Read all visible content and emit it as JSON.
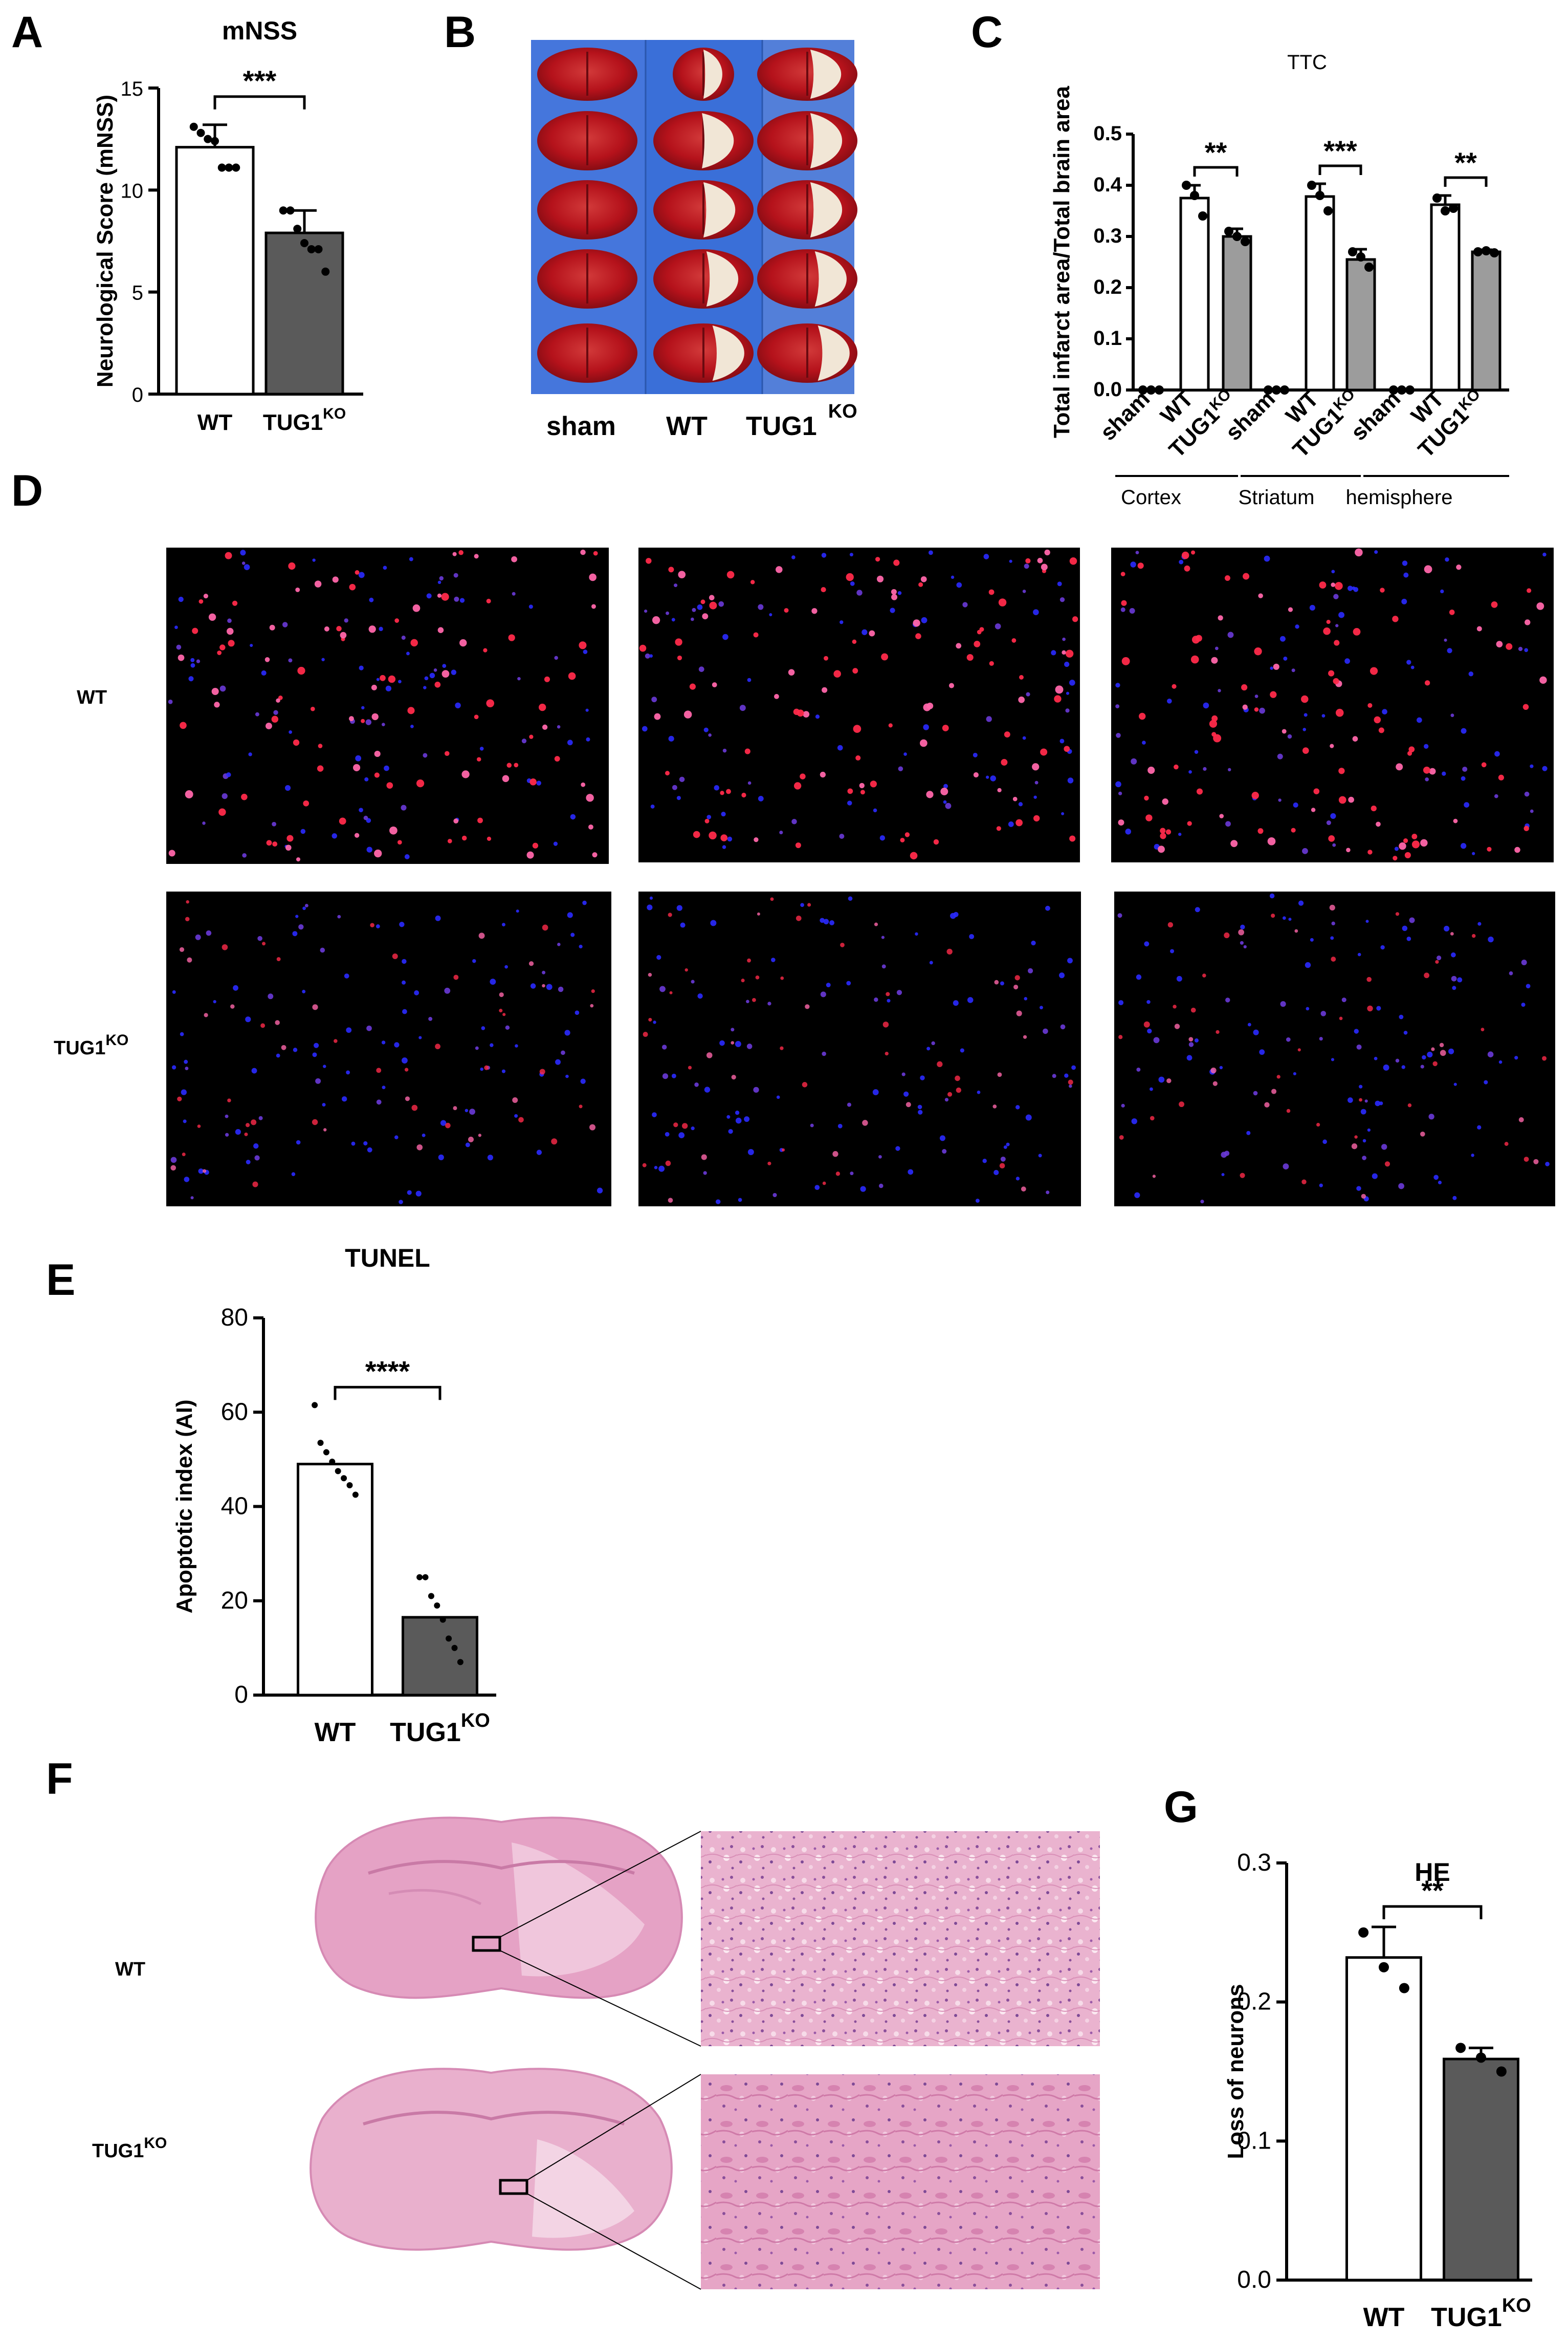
{
  "panels": {
    "A": "A",
    "B": "B",
    "C": "C",
    "D": "D",
    "E": "E",
    "F": "F",
    "G": "G"
  },
  "panel_b": {
    "labels": [
      "sham",
      "WT",
      "TUG1"
    ],
    "tug1_sup": "KO"
  },
  "panel_d": {
    "row_labels": [
      "WT",
      "TUG1"
    ],
    "tug1_sup": "KO"
  },
  "panel_f": {
    "row_labels": [
      "WT",
      "TUG1"
    ],
    "tug1_sup": "KO"
  },
  "colors": {
    "tissue_red": "#b5121b",
    "infarct_white": "#f1e6d6",
    "ttc_background": "#3a6fd8",
    "fluor_red": "#ff2a4a",
    "fluor_blue": "#2a2aff",
    "he_pink": "#e8a9c8",
    "bar_dark": "#5a5a5a",
    "bar_gray": "#9c9c9c"
  },
  "chart_data": [
    {
      "id": "A",
      "type": "bar",
      "title": "mNSS",
      "ylabel": "Neurological Score (mNSS)",
      "categories": [
        "WT",
        "TUG1"
      ],
      "category_sup": [
        "",
        "KO"
      ],
      "values": [
        12.1,
        7.9
      ],
      "errors": [
        1.1,
        1.1
      ],
      "points": [
        [
          13.1,
          12.8,
          12.5,
          12.4,
          11.1,
          11.1,
          11.1
        ],
        [
          9.0,
          9.0,
          8.1,
          7.4,
          7.1,
          7.1,
          6.0
        ]
      ],
      "ylim": [
        0,
        15
      ],
      "yticks": [
        0,
        5,
        10,
        15
      ],
      "significance": "***"
    },
    {
      "id": "C",
      "type": "bar",
      "title": "TTC",
      "ylabel": "Total infarct area/Total brain area",
      "categories": [
        "sham",
        "WT",
        "TUG1",
        "sham",
        "WT",
        "TUG1",
        "sham",
        "WT",
        "TUG1"
      ],
      "category_sup": [
        "",
        "",
        "KO",
        "",
        "",
        "KO",
        "",
        "",
        "KO"
      ],
      "groups": [
        "Cortex",
        "Striatum",
        "hemisphere"
      ],
      "values": [
        0.0,
        0.375,
        0.3,
        0.0,
        0.378,
        0.255,
        0.0,
        0.362,
        0.27
      ],
      "errors": [
        0,
        0.025,
        0.015,
        0,
        0.025,
        0.02,
        0,
        0.018,
        0.004
      ],
      "points": [
        [
          0,
          0,
          0
        ],
        [
          0.4,
          0.38,
          0.34
        ],
        [
          0.31,
          0.3,
          0.29
        ],
        [
          0,
          0,
          0
        ],
        [
          0.4,
          0.38,
          0.35
        ],
        [
          0.27,
          0.26,
          0.24
        ],
        [
          0,
          0,
          0
        ],
        [
          0.375,
          0.35,
          0.355
        ],
        [
          0.27,
          0.272,
          0.268
        ]
      ],
      "ylim": [
        0,
        0.5
      ],
      "yticks": [
        0.0,
        0.1,
        0.2,
        0.3,
        0.4,
        0.5
      ],
      "ytick_labels": [
        "0.0",
        "0.1",
        "0.2",
        "0.3",
        "0.4",
        "0.5"
      ],
      "significance": [
        "**",
        "***",
        "**"
      ]
    },
    {
      "id": "E",
      "type": "bar",
      "title": "TUNEL",
      "ylabel": "Apoptotic index (AI)",
      "categories": [
        "WT",
        "TUG1"
      ],
      "category_sup": [
        "",
        "KO"
      ],
      "values": [
        49,
        16.5
      ],
      "points": [
        [
          61.5,
          53.5,
          51.5,
          49.5,
          47.5,
          46,
          44.5,
          42.5
        ],
        [
          25,
          25,
          21,
          19,
          16,
          12,
          10,
          7
        ]
      ],
      "ylim": [
        0,
        80
      ],
      "yticks": [
        0,
        20,
        40,
        60,
        80
      ],
      "significance": "****"
    },
    {
      "id": "G",
      "type": "bar",
      "title": "HE",
      "ylabel": "Loss of  neurons",
      "categories": [
        "WT",
        "TUG1"
      ],
      "category_sup": [
        "",
        "KO"
      ],
      "values": [
        0.232,
        0.159
      ],
      "errors": [
        0.022,
        0.008
      ],
      "points": [
        [
          0.25,
          0.225,
          0.21
        ],
        [
          0.167,
          0.16,
          0.15
        ]
      ],
      "ylim": [
        0,
        0.3
      ],
      "yticks": [
        0.0,
        0.1,
        0.2,
        0.3
      ],
      "ytick_labels": [
        "0.0",
        "0.1",
        "0.2",
        "0.3"
      ],
      "significance": "**"
    }
  ]
}
